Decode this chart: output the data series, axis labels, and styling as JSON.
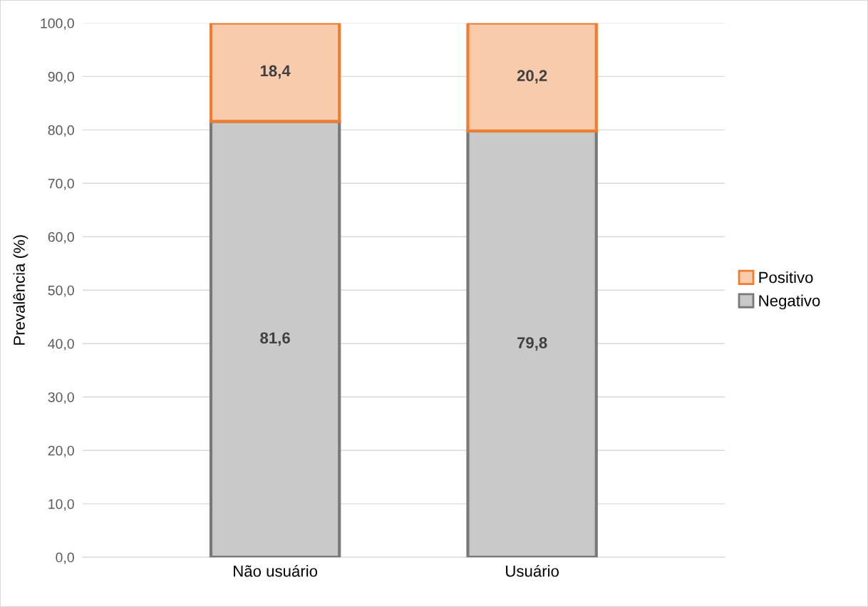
{
  "chart_data": {
    "type": "bar",
    "stacked": true,
    "ylabel": "Prevalência (%)",
    "categories": [
      "Não usuário",
      "Usuário"
    ],
    "series": [
      {
        "name": "Negativo",
        "color": "#c9c9c9",
        "values": [
          81.6,
          79.8
        ],
        "value_labels": [
          "81,6",
          "79,8"
        ]
      },
      {
        "name": "Positivo",
        "color": "#f8cbad",
        "values": [
          18.4,
          20.2
        ],
        "value_labels": [
          "18,4",
          "20,2"
        ]
      }
    ],
    "ylim": [
      0,
      100
    ],
    "yticks": [
      {
        "value": 0,
        "label": "0,0"
      },
      {
        "value": 10,
        "label": "10,0"
      },
      {
        "value": 20,
        "label": "20,0"
      },
      {
        "value": 30,
        "label": "30,0"
      },
      {
        "value": 40,
        "label": "40,0"
      },
      {
        "value": 50,
        "label": "50,0"
      },
      {
        "value": 60,
        "label": "60,0"
      },
      {
        "value": 70,
        "label": "70,0"
      },
      {
        "value": 80,
        "label": "80,0"
      },
      {
        "value": 90,
        "label": "90,0"
      },
      {
        "value": 100,
        "label": "100,0"
      }
    ],
    "grid": "y",
    "legend": "right"
  }
}
